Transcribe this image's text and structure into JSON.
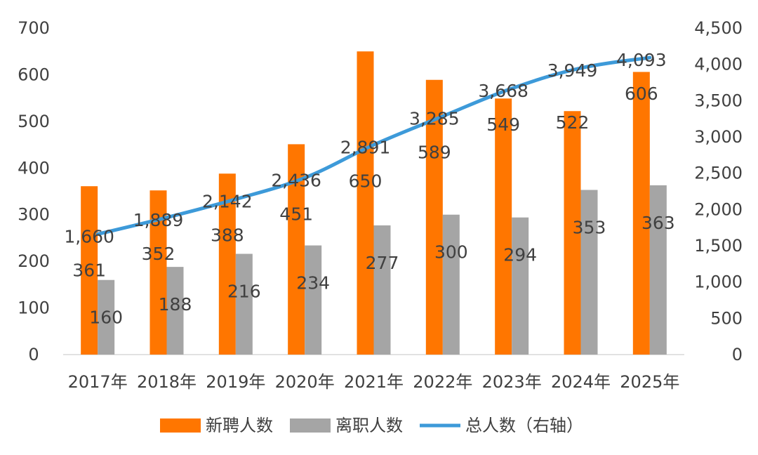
{
  "chart_data": {
    "type": "bar",
    "categories": [
      "2017年",
      "2018年",
      "2019年",
      "2020年",
      "2021年",
      "2022年",
      "2023年",
      "2024年",
      "2025年"
    ],
    "series": [
      {
        "name": "新聘人数",
        "kind": "bar",
        "axis": "left",
        "color": "#FF7600",
        "values": [
          361,
          352,
          388,
          451,
          650,
          589,
          549,
          522,
          606
        ]
      },
      {
        "name": "离职人数",
        "kind": "bar",
        "axis": "left",
        "color": "#A5A5A5",
        "values": [
          160,
          188,
          216,
          234,
          277,
          300,
          294,
          353,
          363
        ]
      },
      {
        "name": "总人数（右轴）",
        "kind": "line",
        "axis": "right",
        "color": "#3D9AD9",
        "values": [
          1660,
          1889,
          2142,
          2436,
          2891,
          3285,
          3668,
          3949,
          4093
        ]
      }
    ],
    "left_ticks": [
      "0",
      "100",
      "200",
      "300",
      "400",
      "500",
      "600",
      "700"
    ],
    "right_ticks": [
      "0",
      "500",
      "1,000",
      "1,500",
      "2,000",
      "2,500",
      "3,000",
      "3,500",
      "4,000",
      "4,500"
    ],
    "ylim_left": [
      0,
      700
    ],
    "ylim_right": [
      0,
      4500
    ],
    "grid": false,
    "legend_position": "bottom"
  }
}
